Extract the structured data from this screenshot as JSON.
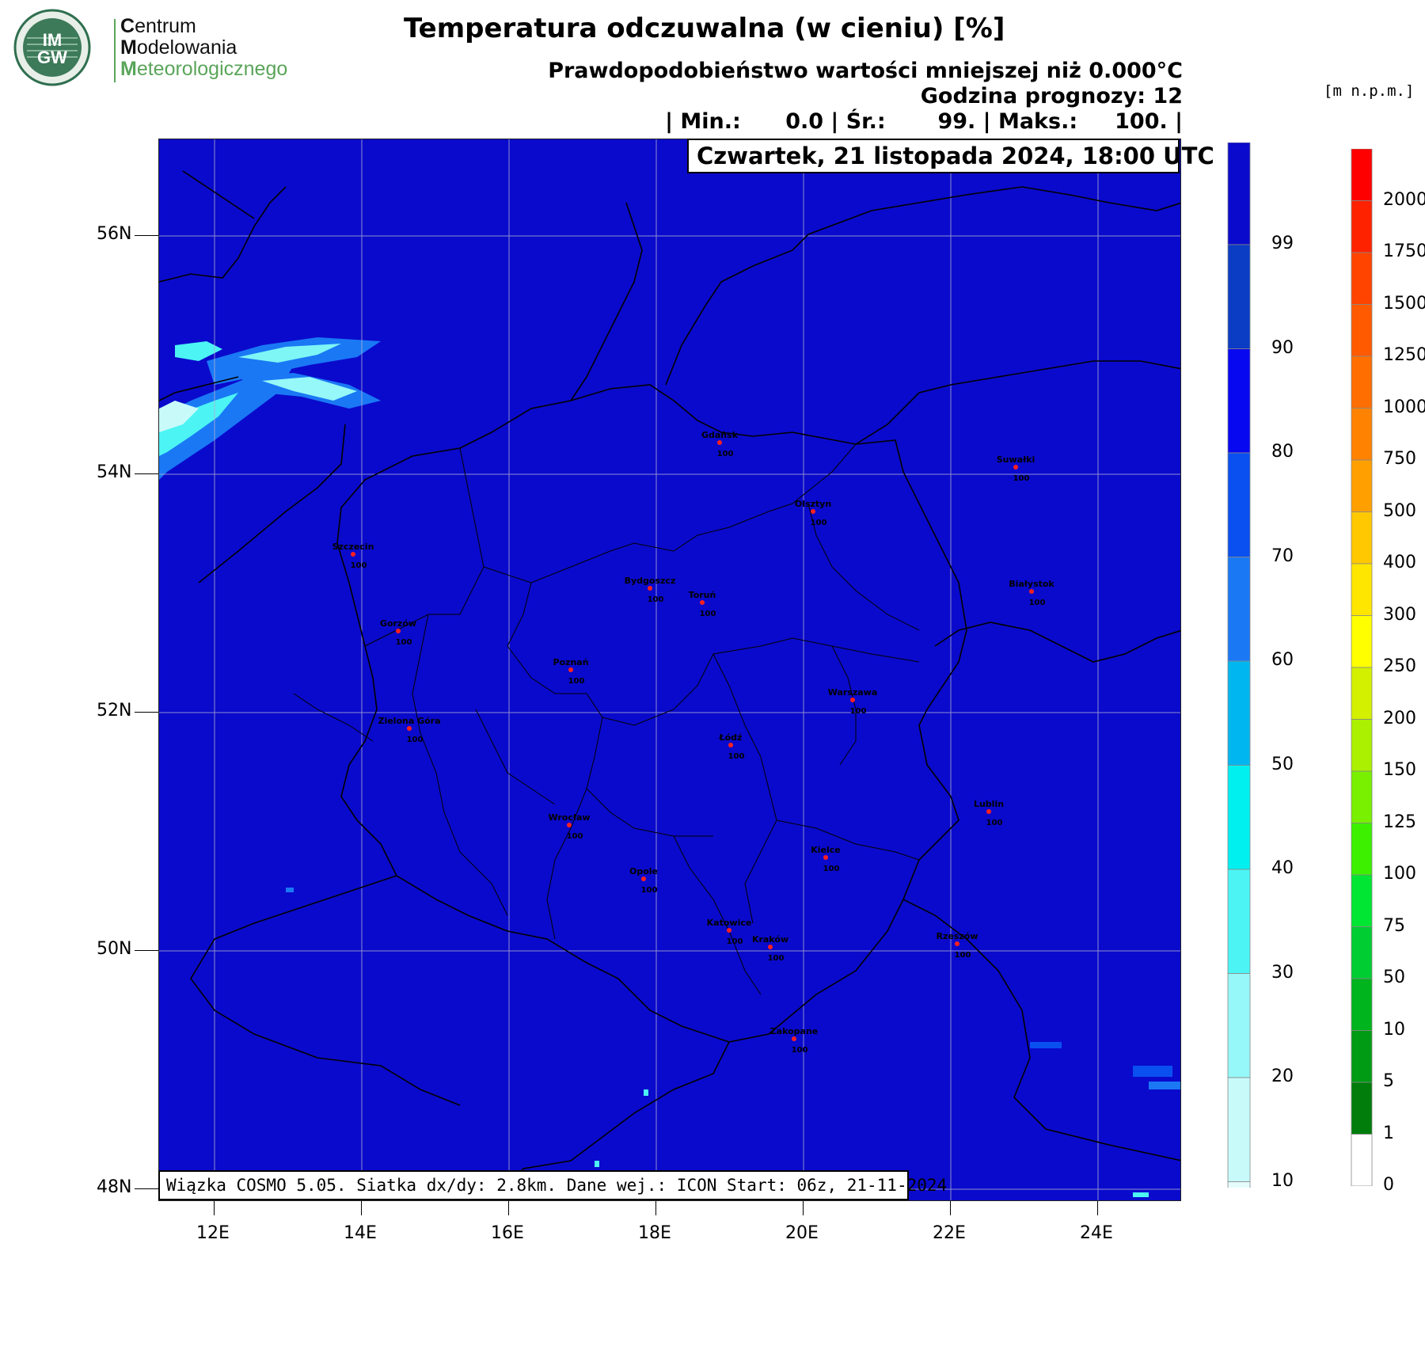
{
  "logo": {
    "badge_top": "IM",
    "badge_bottom": "GW",
    "line1_initial": "C",
    "line1_rest": "entrum",
    "line2_initial": "M",
    "line2_rest": "odelowania",
    "line3_initial": "M",
    "line3_rest": "eteorologicznego"
  },
  "header": {
    "title": "Temperatura odczuwalna (w cieniu) [%]",
    "line1": "Prawdopodobieństwo wartości mniejszej niż 0.000°C",
    "line2": "Godzina prognozy: 12",
    "line3": "| Min.:      0.0 | Śr.:       99. | Maks.:     100. |"
  },
  "date_label": "Czwartek, 21 listopada 2024, 18:00 UTC",
  "footer": "Wiązka COSMO 5.05. Siatka dx/dy: 2.8km. Dane wej.: ICON Start: 06z, 21-11-2024",
  "units_label": "[m n.p.m.]",
  "axes": {
    "lon_labels": [
      "12E",
      "14E",
      "16E",
      "18E",
      "20E",
      "22E",
      "24E"
    ],
    "lat_labels": [
      "56N",
      "54N",
      "52N",
      "50N",
      "48N"
    ]
  },
  "cities": [
    {
      "name": "Gdańsk",
      "value": "100"
    },
    {
      "name": "Suwałki",
      "value": "100"
    },
    {
      "name": "Olsztyn",
      "value": "100"
    },
    {
      "name": "Szczecin",
      "value": "100"
    },
    {
      "name": "Bydgoszcz",
      "value": "100"
    },
    {
      "name": "Toruń",
      "value": "100"
    },
    {
      "name": "Białystok",
      "value": "100"
    },
    {
      "name": "Gorzów",
      "value": "100"
    },
    {
      "name": "Poznań",
      "value": "100"
    },
    {
      "name": "Warszawa",
      "value": "100"
    },
    {
      "name": "Zielona Góra",
      "value": "100"
    },
    {
      "name": "Łódź",
      "value": "100"
    },
    {
      "name": "Lublin",
      "value": "100"
    },
    {
      "name": "Wrocław",
      "value": "100"
    },
    {
      "name": "Kielce",
      "value": "100"
    },
    {
      "name": "Opole",
      "value": "100"
    },
    {
      "name": "Katowice",
      "value": "100"
    },
    {
      "name": "Kraków",
      "value": "100"
    },
    {
      "name": "Rzeszów",
      "value": "100"
    },
    {
      "name": "Zakopane",
      "value": "100"
    }
  ],
  "prob_colorbar": {
    "labels": [
      "99",
      "90",
      "80",
      "70",
      "60",
      "50",
      "40",
      "30",
      "20",
      "10"
    ],
    "colors": [
      "#0a0acc",
      "#0a3cc4",
      "#0808f0",
      "#0a50f0",
      "#1a78f5",
      "#00b6f0",
      "#00f0f0",
      "#4cf4f4",
      "#96f8f8",
      "#c8fafa",
      "#e6fcfc"
    ]
  },
  "elev_colorbar": {
    "labels": [
      "2000",
      "1750",
      "1500",
      "1250",
      "1000",
      "750",
      "500",
      "400",
      "300",
      "250",
      "200",
      "150",
      "125",
      "100",
      "75",
      "50",
      "10",
      "5",
      "1",
      "0"
    ],
    "colors": [
      "#ff0000",
      "#ff2200",
      "#ff4400",
      "#ff5a00",
      "#ff6e00",
      "#ff8200",
      "#ffa000",
      "#ffc800",
      "#ffe600",
      "#ffff00",
      "#d2f000",
      "#aaf000",
      "#78f000",
      "#3cf000",
      "#00e632",
      "#00cd32",
      "#00b41e",
      "#009b14",
      "#007d0a",
      "#ffffff"
    ]
  }
}
